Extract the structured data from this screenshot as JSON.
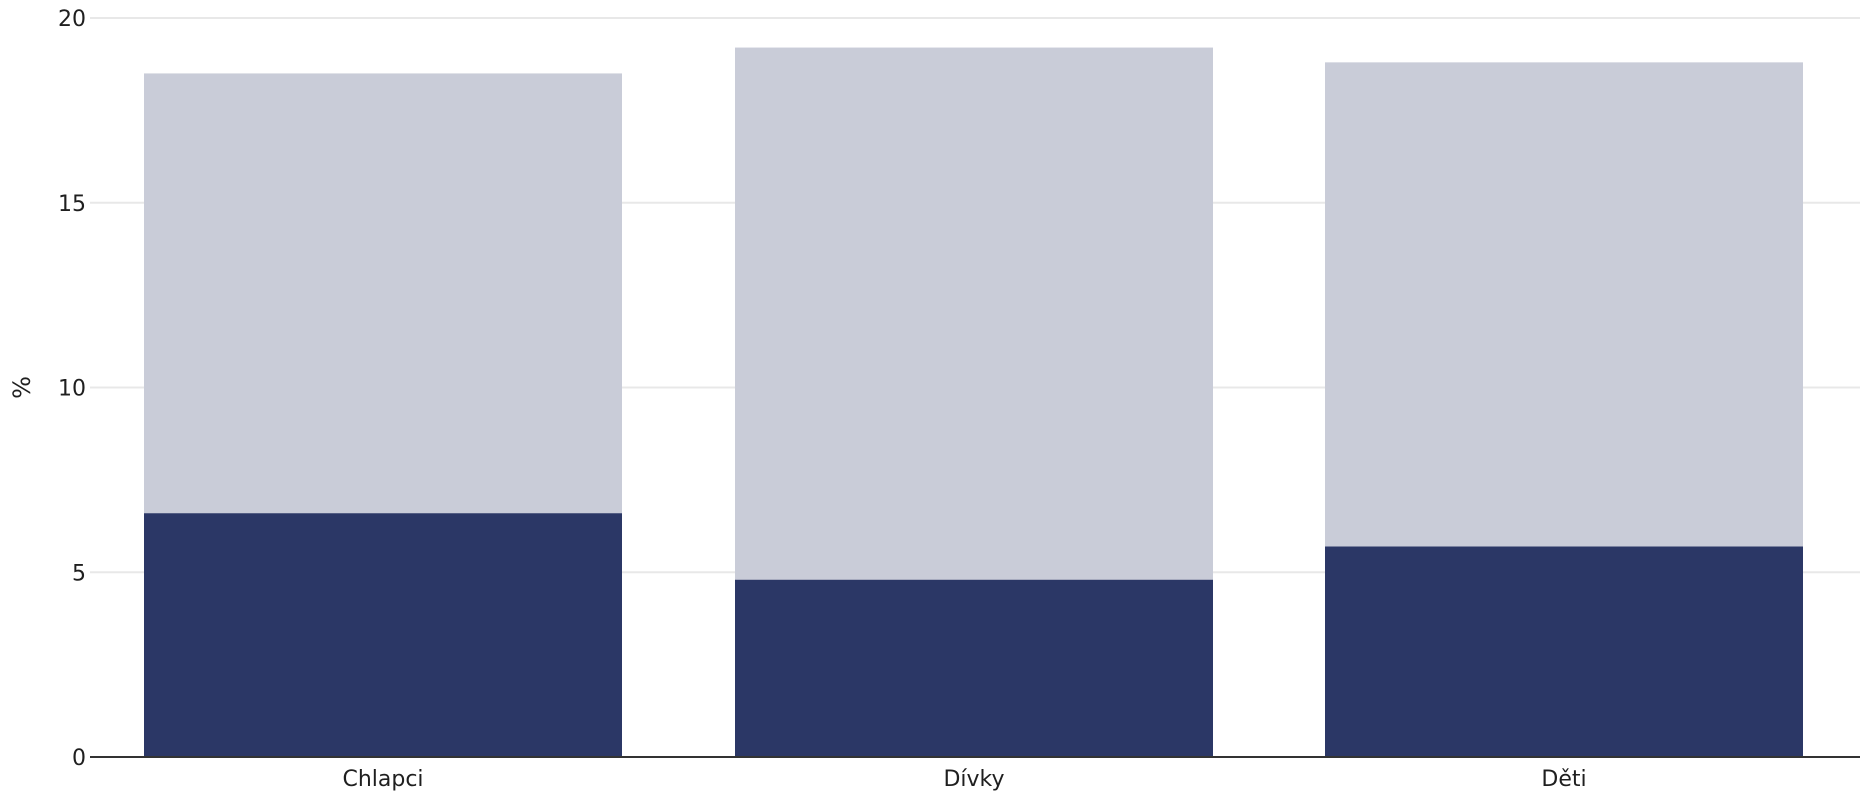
{
  "chart_data": {
    "type": "bar",
    "stacked": true,
    "categories": [
      "Chlapci",
      "Dívky",
      "Děti"
    ],
    "series": [
      {
        "values": [
          6.6,
          4.8,
          5.7
        ],
        "color": "#2b3766"
      },
      {
        "values": [
          11.9,
          14.4,
          13.1
        ],
        "color": "#c9ccd8"
      }
    ],
    "totals": [
      18.5,
      19.2,
      18.8
    ],
    "ylabel": "%",
    "ylim": [
      0,
      20
    ],
    "yticks": [
      0,
      5,
      10,
      15,
      20
    ],
    "grid": true,
    "legend": "none"
  },
  "colors": {
    "background": "#ffffff",
    "grid": "#e8e8e8",
    "axis": "#333333",
    "text": "#1f1f1f"
  }
}
